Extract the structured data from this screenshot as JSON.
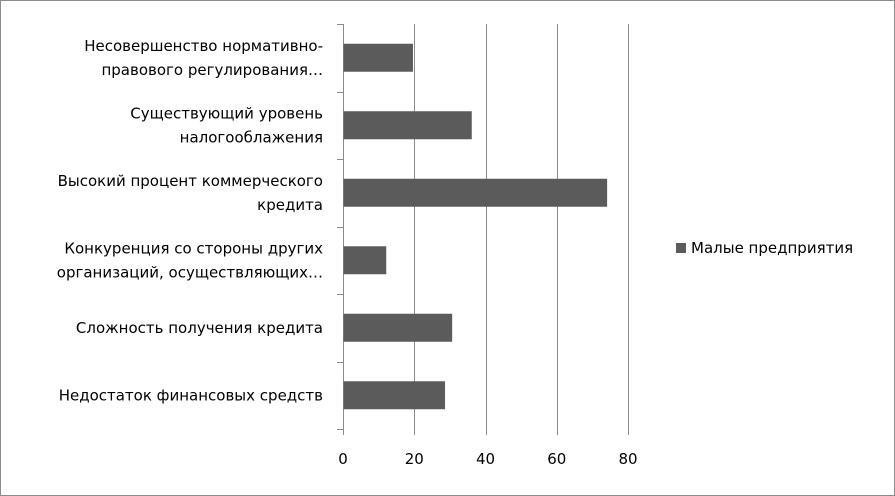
{
  "chart_data": {
    "type": "bar",
    "orientation": "horizontal",
    "categories": [
      [
        "Несовершенство нормативно-",
        "правового регулирования…"
      ],
      [
        "Существующий уровень",
        "налогооблажения"
      ],
      [
        "Высокий процент коммерческого",
        "кредита"
      ],
      [
        "Конкуренция со стороны других",
        "организаций, осуществляющих…"
      ],
      [
        "Сложность получения кредита"
      ],
      [
        "Недостаток финансовых средств"
      ]
    ],
    "series": [
      {
        "name": "Малые предприятия",
        "values": [
          19.5,
          36,
          74,
          12,
          30.5,
          28.5
        ],
        "color": "#5b5b5b"
      }
    ],
    "xlim": [
      0,
      80
    ],
    "xticks": [
      0,
      20,
      40,
      60,
      80
    ],
    "grid": "vertical",
    "legend_position": "right"
  }
}
